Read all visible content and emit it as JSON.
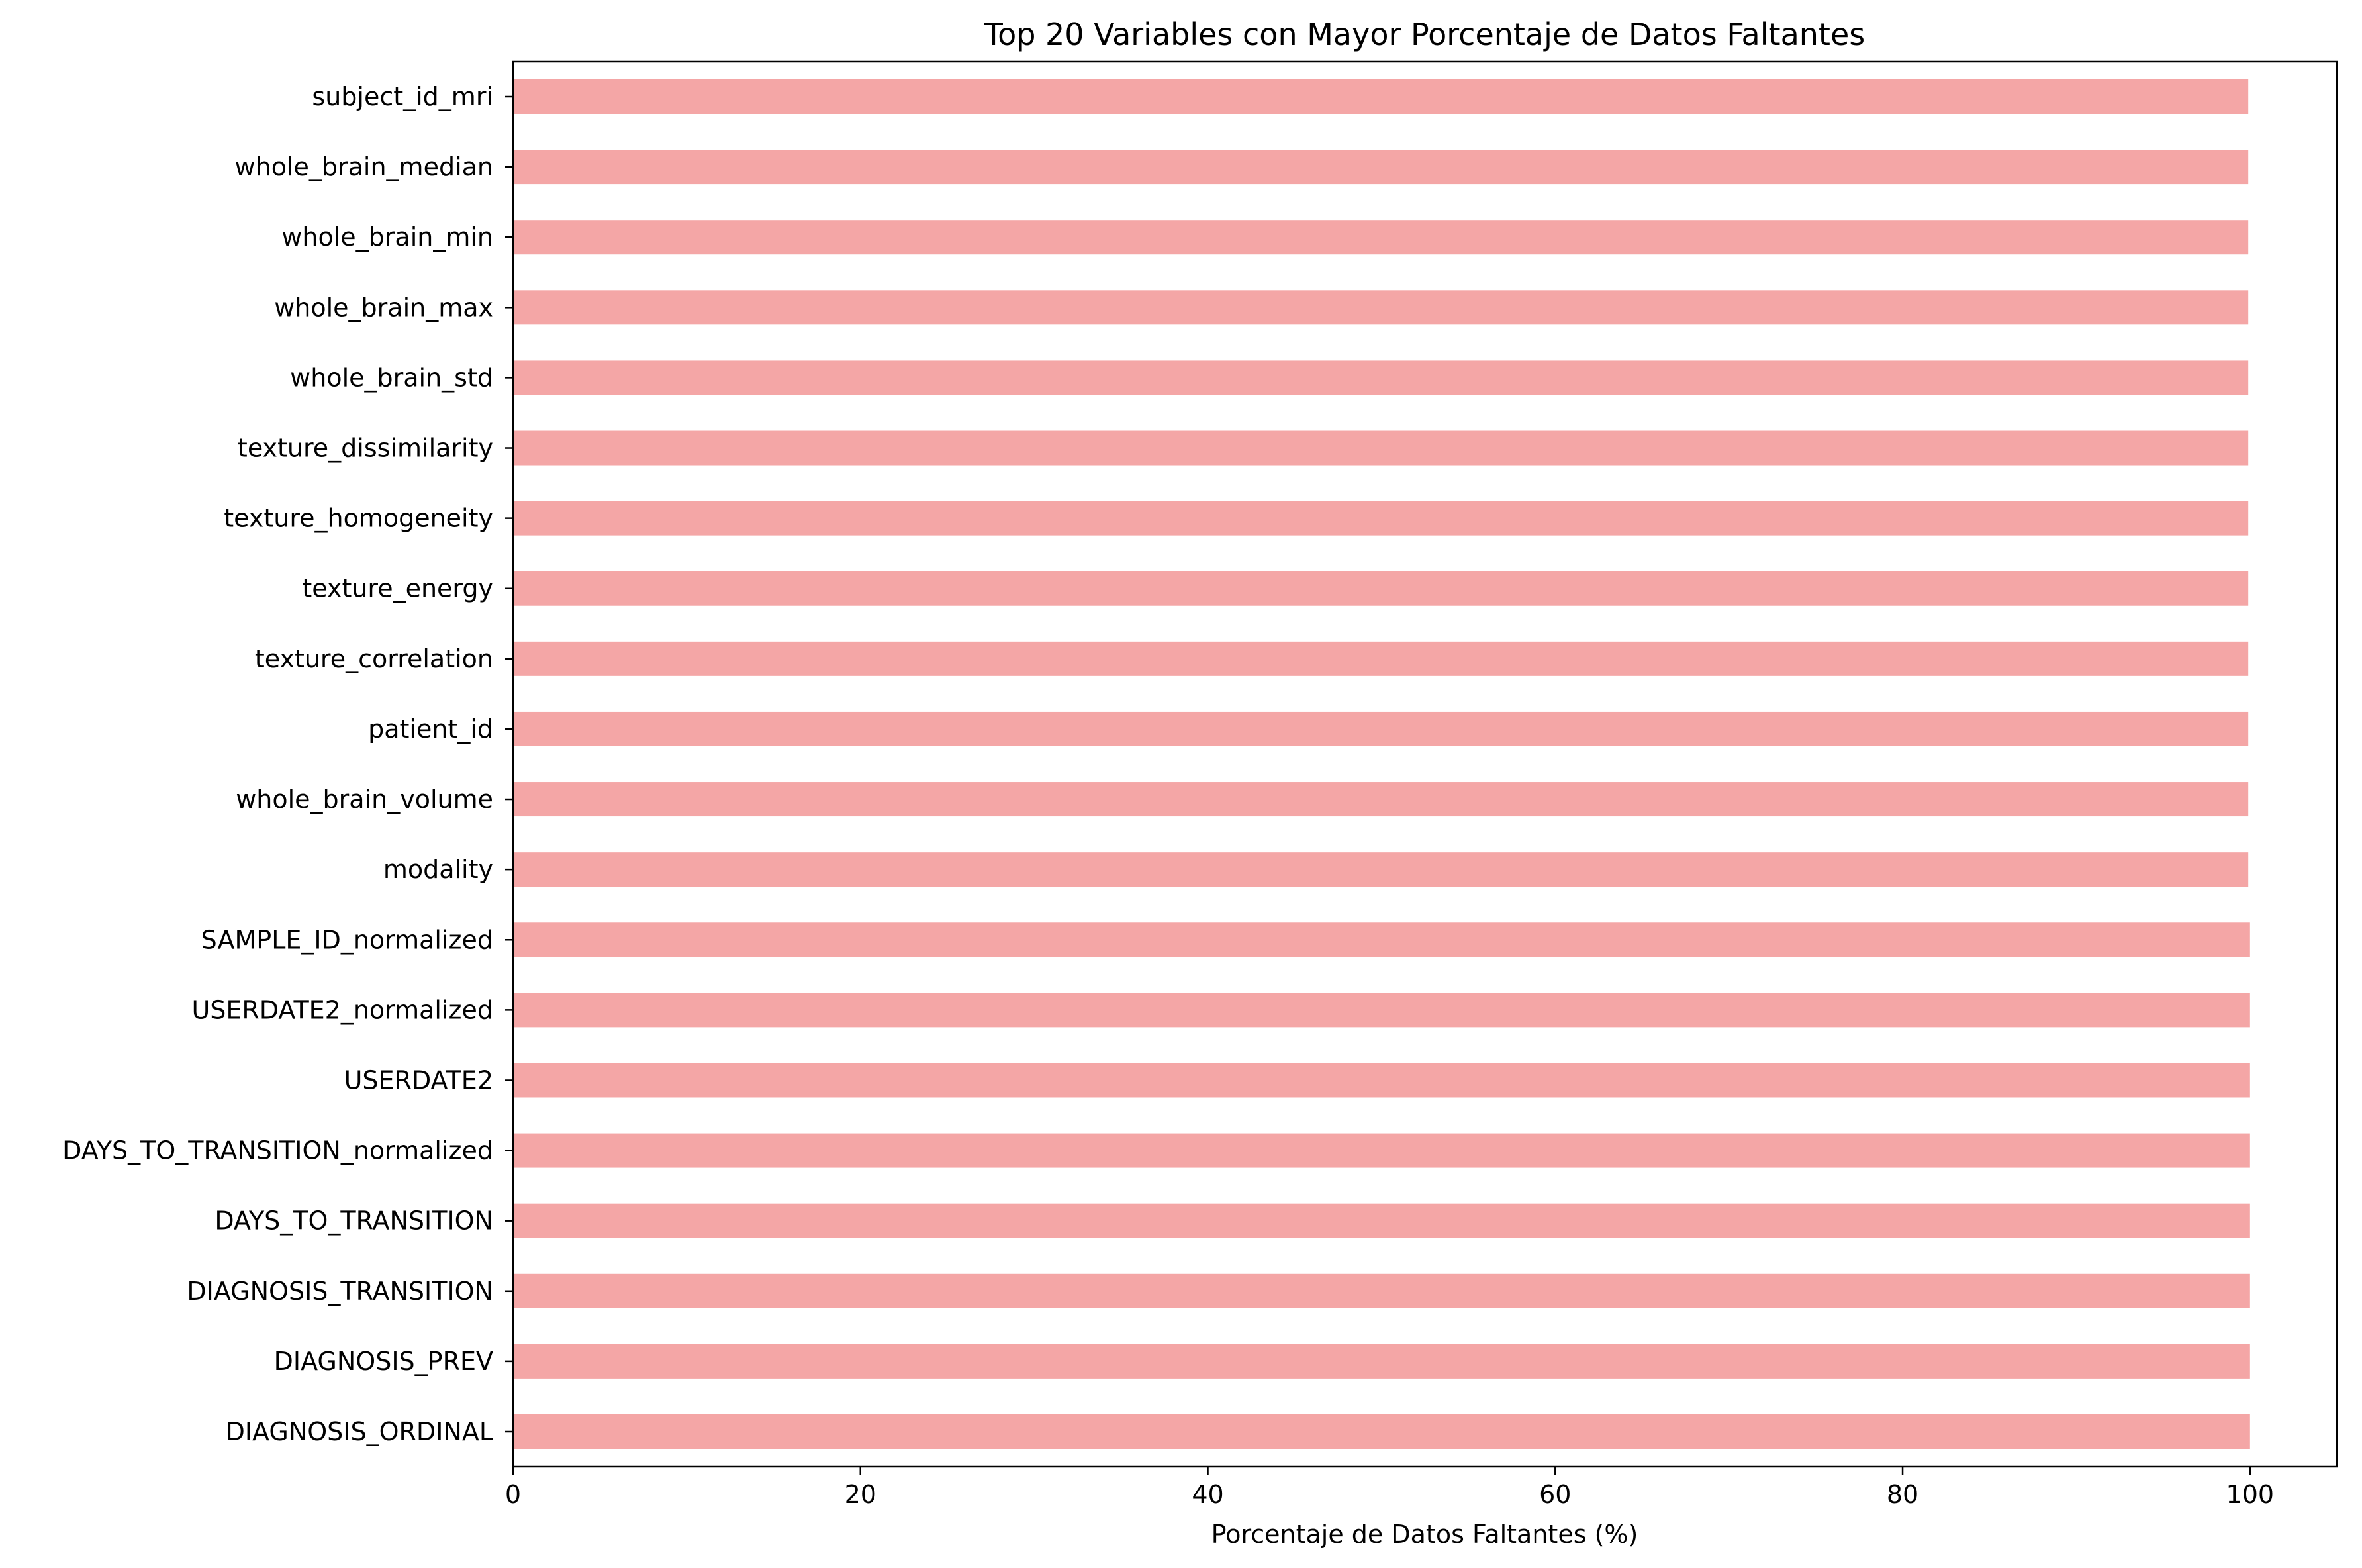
{
  "chart_data": {
    "type": "bar",
    "orientation": "horizontal",
    "title": "Top 20 Variables con Mayor Porcentaje de Datos Faltantes",
    "xlabel": "Porcentaje de Datos Faltantes (%)",
    "ylabel": "",
    "xlim": [
      0,
      105
    ],
    "xticks": [
      "0",
      "20",
      "40",
      "60",
      "80",
      "100"
    ],
    "grid": false,
    "legend": "none",
    "bar_color": "#f4a6a6",
    "categories": [
      "subject_id_mri",
      "whole_brain_median",
      "whole_brain_min",
      "whole_brain_max",
      "whole_brain_std",
      "texture_dissimilarity",
      "texture_homogeneity",
      "texture_energy",
      "texture_correlation",
      "patient_id",
      "whole_brain_volume",
      "modality",
      "SAMPLE_ID_normalized",
      "USERDATE2_normalized",
      "USERDATE2",
      "DAYS_TO_TRANSITION_normalized",
      "DAYS_TO_TRANSITION",
      "DIAGNOSIS_TRANSITION",
      "DIAGNOSIS_PREV",
      "DIAGNOSIS_ORDINAL"
    ],
    "values": [
      99.9,
      99.9,
      99.9,
      99.9,
      99.9,
      99.9,
      99.9,
      99.9,
      99.9,
      99.9,
      99.9,
      99.9,
      100,
      100,
      100,
      100,
      100,
      100,
      100,
      100
    ]
  }
}
